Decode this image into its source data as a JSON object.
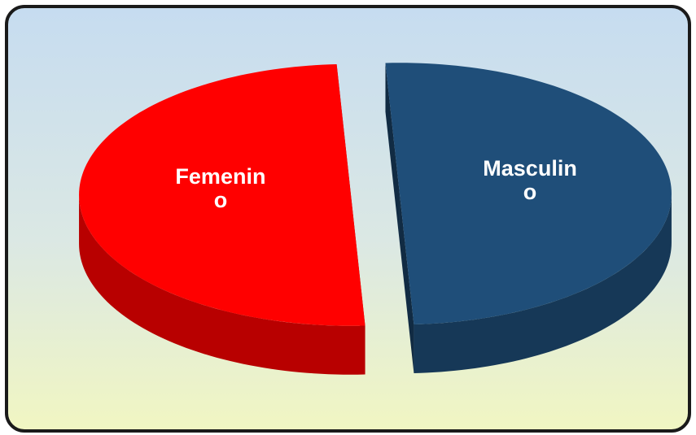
{
  "chart_data": {
    "type": "pie",
    "categories": [
      "Femenino",
      "Masculino"
    ],
    "values": [
      50,
      50
    ],
    "colors": [
      "#ff0000",
      "#1f4e79"
    ]
  }
}
